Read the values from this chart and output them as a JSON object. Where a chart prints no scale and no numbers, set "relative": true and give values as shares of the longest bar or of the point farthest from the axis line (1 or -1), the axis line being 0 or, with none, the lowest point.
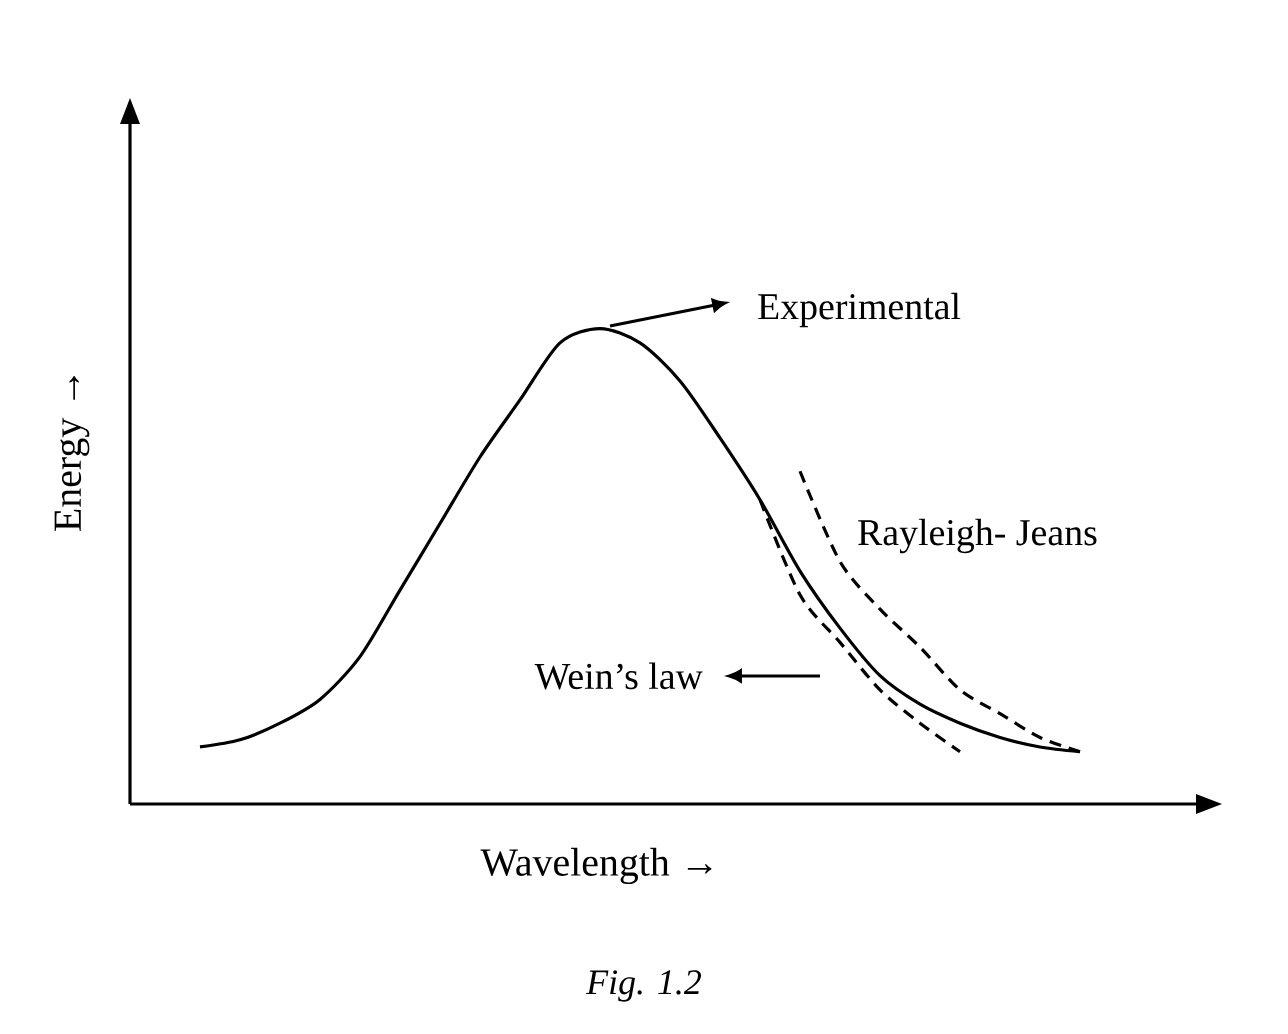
{
  "chart_data": {
    "type": "line",
    "relative": true,
    "xlabel": "Wavelength →",
    "ylabel": "Energy →",
    "categories": [
      null,
      null,
      null,
      null,
      null,
      null,
      null,
      null,
      null,
      null,
      null,
      null,
      null,
      null,
      null,
      null,
      null,
      null,
      null,
      null,
      null,
      null,
      null
    ],
    "series": [
      {
        "name": "Experimental",
        "color": "#000000",
        "line_style": "solid",
        "values": [
          0.12,
          0.135,
          0.17,
          0.22,
          0.31,
          0.45,
          0.59,
          0.73,
          0.85,
          0.97,
          1.0,
          0.97,
          0.89,
          0.77,
          0.64,
          0.49,
          0.37,
          0.27,
          0.21,
          0.17,
          0.14,
          0.12,
          0.11
        ]
      },
      {
        "name": "Rayleigh- Jeans",
        "color": "#000000",
        "line_style": "dashed",
        "values": [
          null,
          null,
          null,
          null,
          null,
          null,
          null,
          null,
          null,
          null,
          null,
          null,
          null,
          null,
          null,
          0.7,
          0.51,
          0.41,
          0.33,
          0.24,
          0.19,
          0.14,
          0.11
        ]
      },
      {
        "name": "Wein’s law",
        "color": "#000000",
        "line_style": "dashed",
        "values": [
          null,
          null,
          null,
          null,
          null,
          null,
          null,
          null,
          null,
          null,
          null,
          null,
          null,
          null,
          0.64,
          0.44,
          0.34,
          0.24,
          0.17,
          0.11,
          null,
          null,
          null
        ]
      }
    ],
    "annotations": [
      "Fig. 1.2"
    ],
    "marker": "none"
  }
}
